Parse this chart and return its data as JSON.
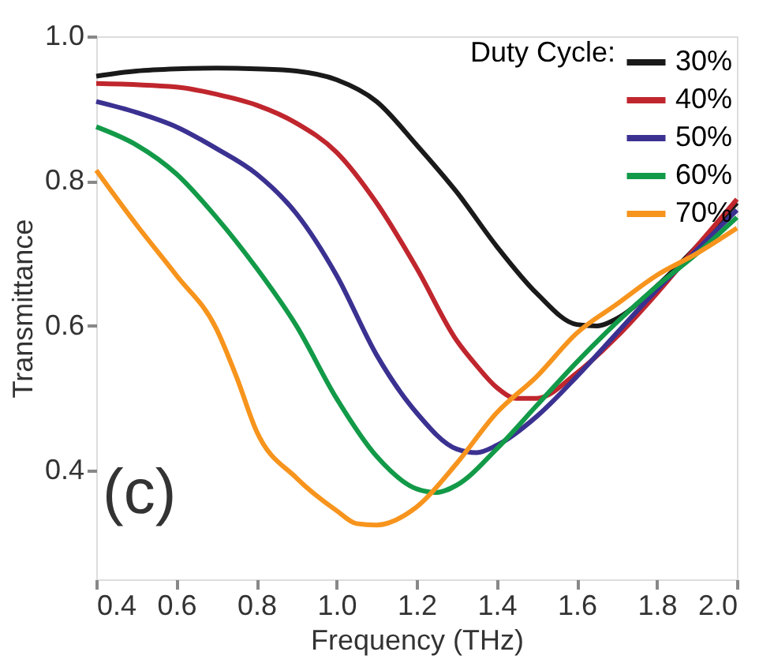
{
  "chart_data": {
    "type": "line",
    "xlabel": "Frequency (THz)",
    "ylabel": "Transmittance",
    "legend_title": "Duty Cycle:",
    "xlim": [
      0.4,
      2.0
    ],
    "ylim": [
      0.25,
      1.0
    ],
    "xticks": [
      0.4,
      0.6,
      0.8,
      {
        "value": 1,
        "label": "1.0"
      },
      1.2,
      1.4,
      1.6,
      1.8,
      {
        "value": 2,
        "label": "2.0"
      }
    ],
    "yticks": [
      0.4,
      0.6,
      0.8,
      {
        "value": 1,
        "label": "1.0"
      }
    ],
    "grid": false,
    "legend": "top right",
    "marker": "none",
    "line_style": "solid",
    "annotations": [
      "(c)"
    ],
    "series": [
      {
        "name": "30%",
        "color": "#1a1a1a",
        "x": [
          0.4,
          0.5,
          0.6,
          0.7,
          0.8,
          0.9,
          1.0,
          1.1,
          1.2,
          1.3,
          1.4,
          1.5,
          1.6,
          1.65,
          1.7,
          1.8,
          1.9,
          2.0
        ],
        "values": [
          0.945,
          0.952,
          0.955,
          0.956,
          0.955,
          0.952,
          0.94,
          0.91,
          0.85,
          0.785,
          0.71,
          0.645,
          0.602,
          0.6,
          0.61,
          0.655,
          0.71,
          0.77
        ]
      },
      {
        "name": "40%",
        "color": "#c0262d",
        "x": [
          0.4,
          0.6,
          0.7,
          0.8,
          0.9,
          1.0,
          1.1,
          1.2,
          1.3,
          1.35,
          1.4,
          1.45,
          1.5,
          1.6,
          1.7,
          1.8,
          1.9,
          2.0
        ],
        "values": [
          0.935,
          0.93,
          0.92,
          0.905,
          0.88,
          0.84,
          0.77,
          0.68,
          0.58,
          0.545,
          0.515,
          0.5,
          0.5,
          0.535,
          0.585,
          0.645,
          0.71,
          0.775
        ]
      },
      {
        "name": "50%",
        "color": "#3a3191",
        "x": [
          0.4,
          0.5,
          0.6,
          0.7,
          0.8,
          0.9,
          1.0,
          1.1,
          1.2,
          1.3,
          1.35,
          1.4,
          1.5,
          1.6,
          1.7,
          1.8,
          1.9,
          2.0
        ],
        "values": [
          0.91,
          0.895,
          0.875,
          0.845,
          0.81,
          0.755,
          0.67,
          0.56,
          0.48,
          0.43,
          0.425,
          0.435,
          0.475,
          0.53,
          0.59,
          0.65,
          0.705,
          0.76
        ]
      },
      {
        "name": "60%",
        "color": "#129a48",
        "x": [
          0.4,
          0.5,
          0.6,
          0.7,
          0.8,
          0.9,
          1.0,
          1.1,
          1.2,
          1.25,
          1.3,
          1.4,
          1.5,
          1.6,
          1.7,
          1.8,
          1.9,
          2.0
        ],
        "values": [
          0.875,
          0.85,
          0.81,
          0.75,
          0.68,
          0.6,
          0.5,
          0.42,
          0.375,
          0.37,
          0.38,
          0.43,
          0.49,
          0.55,
          0.605,
          0.655,
          0.7,
          0.75
        ]
      },
      {
        "name": "70%",
        "color": "#f7941d",
        "x": [
          0.4,
          0.5,
          0.6,
          0.7,
          0.75,
          0.8,
          0.9,
          1.0,
          1.05,
          1.1,
          1.2,
          1.3,
          1.4,
          1.5,
          1.6,
          1.7,
          1.8,
          1.9,
          2.0
        ],
        "values": [
          0.815,
          0.74,
          0.67,
          0.596,
          0.53,
          0.455,
          0.39,
          0.345,
          0.327,
          0.325,
          0.35,
          0.41,
          0.48,
          0.53,
          0.59,
          0.63,
          0.67,
          0.7,
          0.735
        ]
      }
    ]
  }
}
